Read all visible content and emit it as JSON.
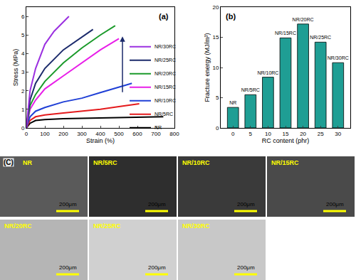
{
  "chart_data": [
    {
      "type": "line",
      "annotations": [
        "(a)"
      ],
      "x_label": "Strain (%)",
      "y_label": "Stress (MPa)",
      "xlim": [
        0,
        800
      ],
      "xticks": [
        0,
        100,
        200,
        300,
        400,
        500,
        600,
        700,
        800
      ],
      "ylim": [
        0,
        6.5
      ],
      "yticks": [
        0,
        1,
        2,
        3,
        4,
        5,
        6
      ],
      "legend": "right",
      "series": [
        {
          "name": "NR",
          "color": "#000000",
          "x": [
            0,
            20,
            50,
            100,
            200,
            300,
            400,
            500,
            600,
            700,
            740
          ],
          "values": [
            0,
            0.25,
            0.4,
            0.45,
            0.5,
            0.52,
            0.55,
            0.57,
            0.6,
            0.62,
            0.6
          ]
        },
        {
          "name": "NR/5RC",
          "color": "#e41a1c",
          "x": [
            0,
            20,
            50,
            100,
            200,
            300,
            400,
            500,
            610
          ],
          "values": [
            0,
            0.4,
            0.6,
            0.7,
            0.8,
            0.9,
            1.0,
            1.15,
            1.3
          ]
        },
        {
          "name": "NR/10RC",
          "color": "#1f3fd6",
          "x": [
            0,
            20,
            50,
            100,
            200,
            300,
            400,
            500,
            570
          ],
          "values": [
            0,
            0.6,
            0.9,
            1.1,
            1.4,
            1.6,
            1.9,
            2.2,
            2.4
          ]
        },
        {
          "name": "NR/15RC",
          "color": "#e81ee8",
          "x": [
            0,
            20,
            50,
            100,
            200,
            300,
            400,
            500
          ],
          "values": [
            0,
            1.0,
            1.5,
            2.1,
            2.8,
            3.5,
            4.2,
            4.8
          ]
        },
        {
          "name": "NR/20RC",
          "color": "#1a9a2a",
          "x": [
            0,
            20,
            50,
            100,
            200,
            300,
            400,
            480
          ],
          "values": [
            0,
            1.2,
            1.8,
            2.5,
            3.5,
            4.3,
            5.0,
            5.5
          ]
        },
        {
          "name": "NR/25RC",
          "color": "#1b2a6b",
          "x": [
            0,
            20,
            50,
            100,
            200,
            300,
            360
          ],
          "values": [
            0,
            1.5,
            2.4,
            3.2,
            4.2,
            4.9,
            5.3
          ]
        },
        {
          "name": "NR/30RC",
          "color": "#9b30e0",
          "x": [
            0,
            20,
            50,
            100,
            150,
            200,
            230
          ],
          "values": [
            0,
            2.0,
            3.2,
            4.5,
            5.2,
            5.7,
            6.0
          ]
        }
      ]
    },
    {
      "type": "bar",
      "annotations": [
        "(b)"
      ],
      "x_label": "RC content (phr)",
      "y_label": "Fracture energy (MJ/m³)",
      "x": [
        0,
        5,
        10,
        15,
        20,
        25,
        30
      ],
      "values": [
        3.4,
        5.5,
        8.4,
        14.9,
        17.2,
        14.2,
        10.8
      ],
      "bar_labels": [
        "NR",
        "NR/5RC",
        "NR/10RC",
        "NR/15RC",
        "NR/20RC",
        "NR/25RC",
        "NR/30RC"
      ],
      "color": "#1f9e94",
      "xlim": [
        -3.5,
        33.5
      ],
      "xticks": [
        0,
        5,
        10,
        15,
        20,
        25,
        30
      ],
      "ylim": [
        0,
        20
      ],
      "yticks": [
        0,
        5,
        10,
        15,
        20
      ]
    }
  ],
  "panel_c": {
    "label": "(C)",
    "images": [
      {
        "label": "NR",
        "scale_bar": "200μm"
      },
      {
        "label": "NR/5RC",
        "scale_bar": "200μm"
      },
      {
        "label": "NR/10RC",
        "scale_bar": "200μm"
      },
      {
        "label": "NR/15RC",
        "scale_bar": "200μm"
      },
      {
        "label": "NR/20RC",
        "scale_bar": "200μm"
      },
      {
        "label": "NR/25RC",
        "scale_bar": "200μm"
      },
      {
        "label": "NR/30RC",
        "scale_bar": "200μm"
      }
    ]
  }
}
